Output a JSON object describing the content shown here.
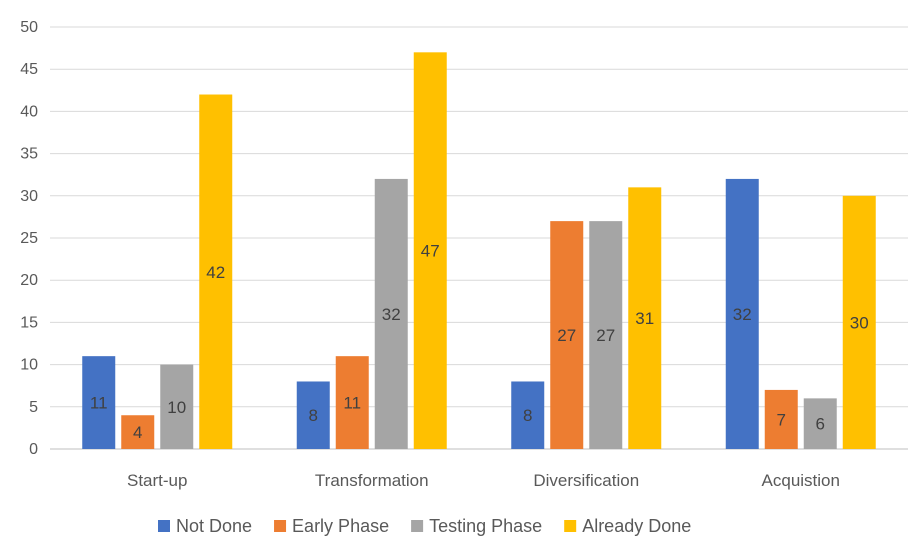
{
  "chart_data": {
    "type": "bar",
    "categories": [
      "Start-up",
      "Transformation",
      "Diversification",
      "Acquistion"
    ],
    "series": [
      {
        "name": "Not Done",
        "values": [
          11,
          8,
          8,
          32
        ],
        "color": "#4472c4"
      },
      {
        "name": "Early Phase",
        "values": [
          4,
          11,
          27,
          7
        ],
        "color": "#ed7d31"
      },
      {
        "name": "Testing Phase",
        "values": [
          10,
          32,
          27,
          6
        ],
        "color": "#a5a5a5"
      },
      {
        "name": "Already Done",
        "values": [
          42,
          47,
          31,
          30
        ],
        "color": "#ffc000"
      }
    ],
    "ylim": [
      0,
      50
    ],
    "yticks": [
      0,
      5,
      10,
      15,
      20,
      25,
      30,
      35,
      40,
      45,
      50
    ],
    "grid": true,
    "legend": "bottom",
    "data_labels": true
  }
}
